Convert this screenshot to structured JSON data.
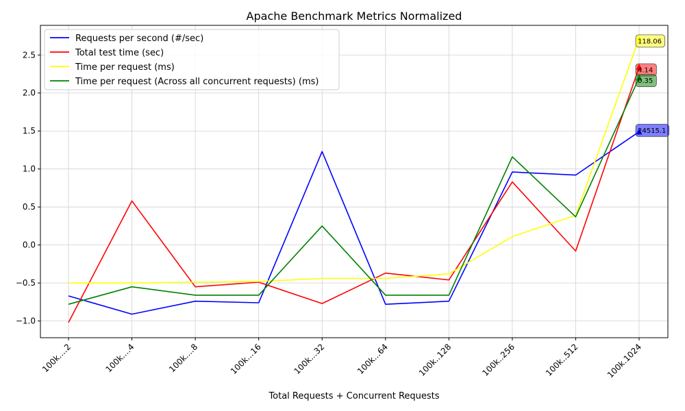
{
  "chart_data": {
    "type": "line",
    "title": "Apache Benchmark Metrics Normalized",
    "xlabel": "Total Requests + Concurrent Requests",
    "ylabel": "",
    "categories": [
      "100k....2",
      "100k....4",
      "100k....8",
      "100k...16",
      "100k...32",
      "100k...64",
      "100k..128",
      "100k..256",
      "100k..512",
      "100k.1024"
    ],
    "ylim": [
      -1.22,
      2.89
    ],
    "yticks": [
      -1.0,
      -0.5,
      0.0,
      0.5,
      1.0,
      1.5,
      2.0,
      2.5
    ],
    "ytick_labels": [
      "−1.0",
      "−0.5",
      "0.0",
      "0.5",
      "1.0",
      "1.5",
      "2.0",
      "2.5"
    ],
    "grid": true,
    "legend_position": "top-left",
    "series": [
      {
        "name": "Requests per second (#/sec)",
        "color": "#0000ff",
        "values": [
          -0.67,
          -0.91,
          -0.74,
          -0.76,
          1.23,
          -0.78,
          -0.74,
          0.96,
          0.92,
          1.49
        ],
        "annotation": "24515.1"
      },
      {
        "name": "Total test time (sec)",
        "color": "#ff0000",
        "values": [
          -1.02,
          0.58,
          -0.55,
          -0.49,
          -0.77,
          -0.37,
          -0.46,
          0.83,
          -0.08,
          2.34
        ],
        "annotation": "4.14"
      },
      {
        "name": "Time per request (ms)",
        "color": "#ffff00",
        "values": [
          -0.5,
          -0.5,
          -0.49,
          -0.48,
          -0.44,
          -0.44,
          -0.38,
          0.11,
          0.39,
          2.72
        ],
        "annotation": "118.06"
      },
      {
        "name": "Time per request (Across all concurrent requests) (ms)",
        "color": "#008000",
        "values": [
          -0.78,
          -0.55,
          -0.66,
          -0.66,
          0.25,
          -0.66,
          -0.66,
          1.16,
          0.37,
          2.2
        ],
        "annotation": "0.35"
      }
    ]
  }
}
